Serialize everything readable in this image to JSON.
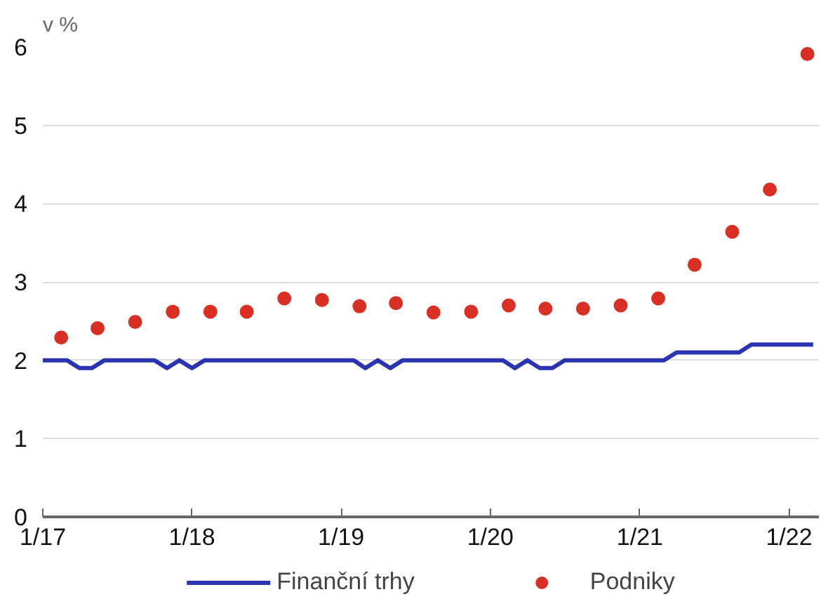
{
  "chart_data": {
    "type": "line",
    "ylabel": "v %",
    "xlim": [
      "2017-01-01",
      "2022-03-15"
    ],
    "xticks": [
      {
        "value": "2017-01-01",
        "label": "1/17"
      },
      {
        "value": "2018-01-01",
        "label": "1/18"
      },
      {
        "value": "2019-01-01",
        "label": "1/19"
      },
      {
        "value": "2020-01-01",
        "label": "1/20"
      },
      {
        "value": "2021-01-01",
        "label": "1/21"
      },
      {
        "value": "2022-01-01",
        "label": "1/22"
      }
    ],
    "ylim": [
      0,
      6
    ],
    "yticks": [
      0,
      1,
      2,
      3,
      4,
      5,
      6
    ],
    "grid": "y",
    "legend": "bottom",
    "series": [
      {
        "name": "Finanční trhy",
        "color": "#2b34b0",
        "marker": "none",
        "line_style": "solid",
        "x": [
          "2017-01",
          "2017-02",
          "2017-03",
          "2017-04",
          "2017-05",
          "2017-06",
          "2017-07",
          "2017-08",
          "2017-09",
          "2017-10",
          "2017-11",
          "2017-12",
          "2018-01",
          "2018-02",
          "2018-03",
          "2018-04",
          "2018-05",
          "2018-06",
          "2018-07",
          "2018-08",
          "2018-09",
          "2018-10",
          "2018-11",
          "2018-12",
          "2019-01",
          "2019-02",
          "2019-03",
          "2019-04",
          "2019-05",
          "2019-06",
          "2019-07",
          "2019-08",
          "2019-09",
          "2019-10",
          "2019-11",
          "2019-12",
          "2020-01",
          "2020-02",
          "2020-03",
          "2020-04",
          "2020-05",
          "2020-06",
          "2020-07",
          "2020-08",
          "2020-09",
          "2020-10",
          "2020-11",
          "2020-12",
          "2021-01",
          "2021-02",
          "2021-03",
          "2021-04",
          "2021-05",
          "2021-06",
          "2021-07",
          "2021-08",
          "2021-09",
          "2021-10",
          "2021-11",
          "2021-12",
          "2022-01",
          "2022-02",
          "2022-03"
        ],
        "values": [
          2,
          2,
          2,
          1.9,
          1.9,
          2,
          2,
          2,
          2,
          2,
          1.9,
          2,
          1.9,
          2,
          2,
          2,
          2,
          2,
          2,
          2,
          2,
          2,
          2,
          2,
          2,
          2,
          1.9,
          2,
          1.9,
          2,
          2,
          2,
          2,
          2,
          2,
          2,
          2,
          2,
          1.9,
          2,
          1.9,
          1.9,
          2,
          2,
          2,
          2,
          2,
          2,
          2,
          2,
          2,
          2.1,
          2.1,
          2.1,
          2.1,
          2.1,
          2.1,
          2.2,
          2.2,
          2.2,
          2.2,
          2.2,
          2.2
        ]
      },
      {
        "name": "Podniky",
        "type": "scatter",
        "color": "#d93025",
        "marker": "circle",
        "x": [
          "2017-02-15",
          "2017-05-15",
          "2017-08-15",
          "2017-11-15",
          "2018-02-15",
          "2018-05-15",
          "2018-08-15",
          "2018-11-15",
          "2019-02-15",
          "2019-05-15",
          "2019-08-15",
          "2019-11-15",
          "2020-02-15",
          "2020-05-15",
          "2020-08-15",
          "2020-11-15",
          "2021-02-15",
          "2021-05-15",
          "2021-08-15",
          "2021-11-15",
          "2022-02-15"
        ],
        "values": [
          2.29,
          2.41,
          2.49,
          2.62,
          2.62,
          2.62,
          2.79,
          2.77,
          2.69,
          2.73,
          2.61,
          2.62,
          2.7,
          2.66,
          2.66,
          2.7,
          2.79,
          3.22,
          3.64,
          4.18,
          5.91
        ]
      }
    ]
  }
}
